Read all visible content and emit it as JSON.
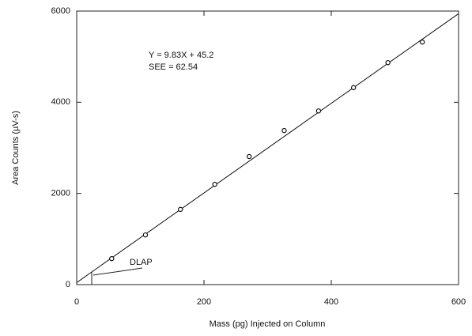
{
  "chart_data": {
    "type": "scatter",
    "equation": "Y = 9.83X + 45.2",
    "see": "SEE = 62.54",
    "annotation": "DLAP",
    "xlabel": "Mass (pg) Injected on Column",
    "ylabel": "Area Counts (µV-s)",
    "xlim": [
      0,
      600
    ],
    "ylim": [
      0,
      6000
    ],
    "xticks": [
      0,
      200,
      400,
      600
    ],
    "yticks": [
      0,
      2000,
      4000,
      6000
    ],
    "series": [
      {
        "color": "#111111",
        "x": [
          55,
          108,
          163,
          217,
          271,
          326,
          380,
          435,
          489,
          543
        ],
        "values": [
          570,
          1090,
          1650,
          2200,
          2810,
          3380,
          3810,
          4320,
          4870,
          5320
        ]
      }
    ],
    "fit": {
      "color": "#111111",
      "x": [
        0,
        600
      ],
      "values": [
        45,
        5943
      ]
    }
  }
}
